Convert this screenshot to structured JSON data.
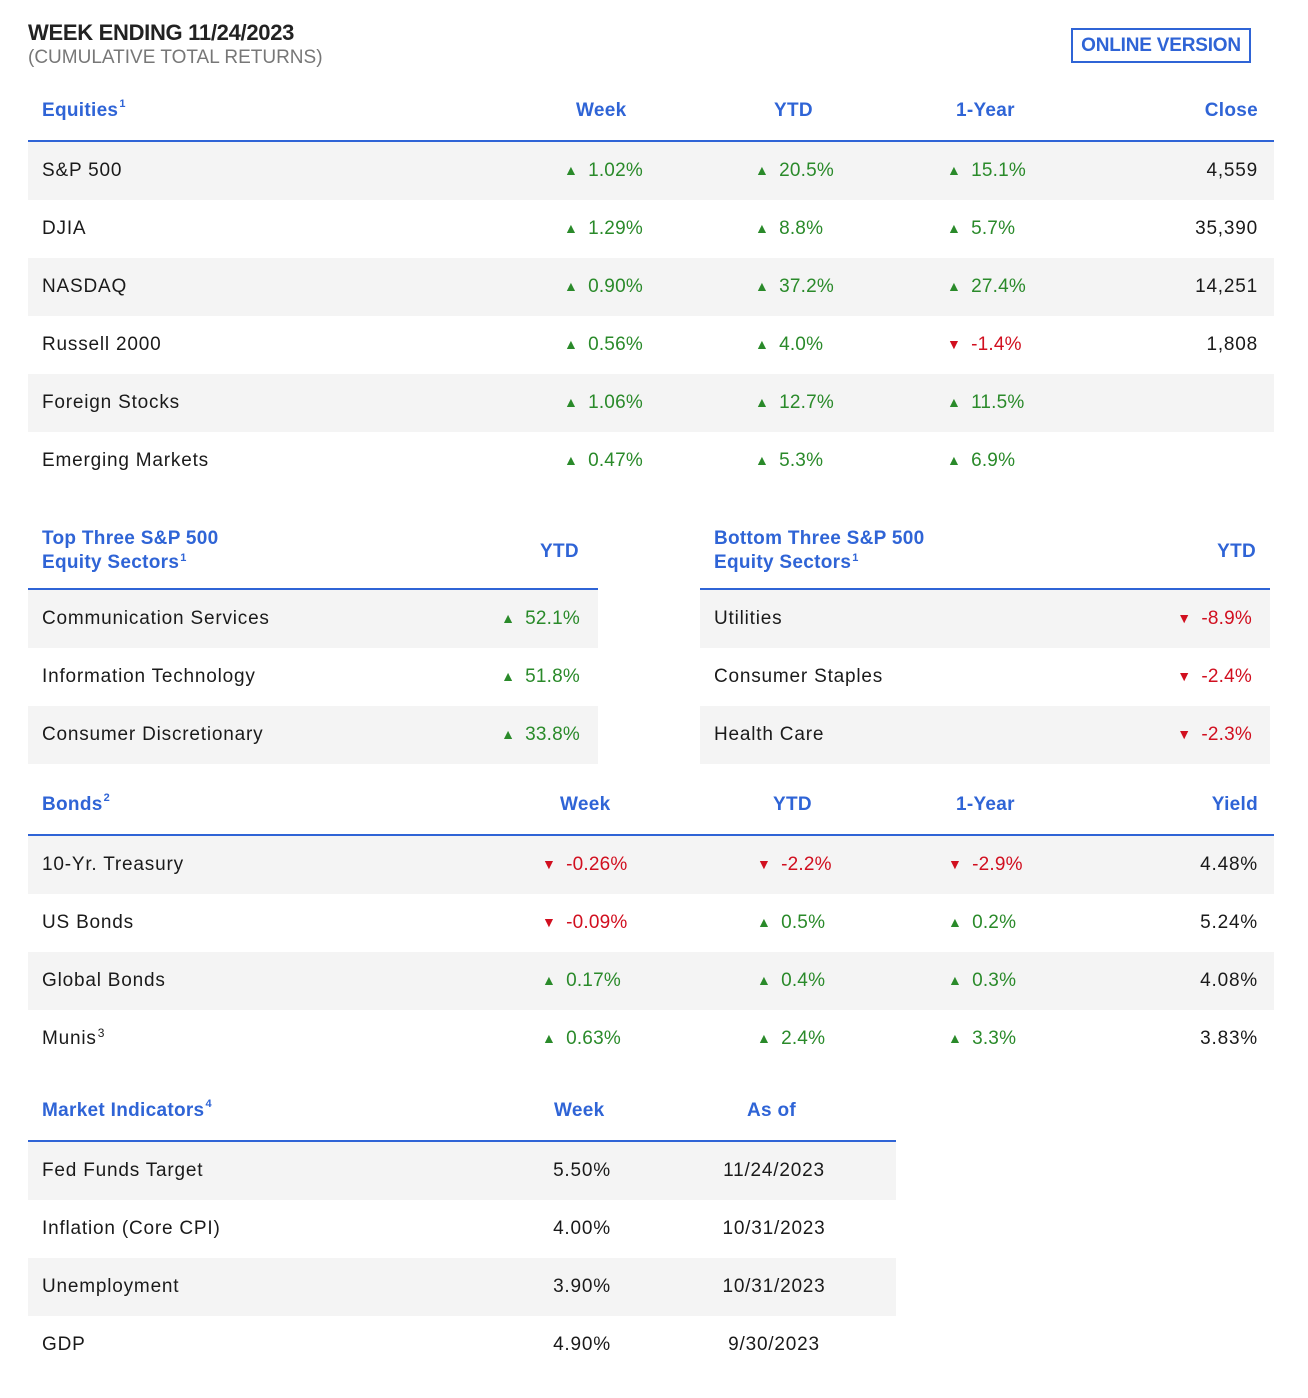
{
  "header": {
    "title": "WEEK ENDING 11/24/2023",
    "subtitle": "(CUMULATIVE TOTAL RETURNS)",
    "online_label": "ONLINE VERSION"
  },
  "equities": {
    "title": "Equities",
    "footnote": "1",
    "columns": [
      "Week",
      "YTD",
      "1-Year",
      "Close"
    ],
    "rows": [
      {
        "name": "S&P 500",
        "week": "1.02%",
        "ytd": "20.5%",
        "year": "15.1%",
        "close": "4,559",
        "week_dir": "up",
        "ytd_dir": "up",
        "year_dir": "up"
      },
      {
        "name": "DJIA",
        "week": "1.29%",
        "ytd": "8.8%",
        "year": "5.7%",
        "close": "35,390",
        "week_dir": "up",
        "ytd_dir": "up",
        "year_dir": "up"
      },
      {
        "name": "NASDAQ",
        "week": "0.90%",
        "ytd": "37.2%",
        "year": "27.4%",
        "close": "14,251",
        "week_dir": "up",
        "ytd_dir": "up",
        "year_dir": "up"
      },
      {
        "name": "Russell 2000",
        "week": "0.56%",
        "ytd": "4.0%",
        "year": "-1.4%",
        "close": "1,808",
        "week_dir": "up",
        "ytd_dir": "up",
        "year_dir": "down"
      },
      {
        "name": "Foreign Stocks",
        "week": "1.06%",
        "ytd": "12.7%",
        "year": "11.5%",
        "close": "",
        "week_dir": "up",
        "ytd_dir": "up",
        "year_dir": "up"
      },
      {
        "name": "Emerging Markets",
        "week": "0.47%",
        "ytd": "5.3%",
        "year": "6.9%",
        "close": "",
        "week_dir": "up",
        "ytd_dir": "up",
        "year_dir": "up"
      }
    ]
  },
  "top_sectors": {
    "title_line1": "Top Three S&P 500",
    "title_line2": "Equity Sectors",
    "footnote": "1",
    "column": "YTD",
    "rows": [
      {
        "name": "Communication Services",
        "ytd": "52.1%",
        "dir": "up"
      },
      {
        "name": "Information Technology",
        "ytd": "51.8%",
        "dir": "up"
      },
      {
        "name": "Consumer Discretionary",
        "ytd": "33.8%",
        "dir": "up"
      }
    ]
  },
  "bottom_sectors": {
    "title_line1": "Bottom Three S&P 500",
    "title_line2": "Equity Sectors",
    "footnote": "1",
    "column": "YTD",
    "rows": [
      {
        "name": "Utilities",
        "ytd": "-8.9%",
        "dir": "down"
      },
      {
        "name": "Consumer Staples",
        "ytd": "-2.4%",
        "dir": "down"
      },
      {
        "name": "Health Care",
        "ytd": "-2.3%",
        "dir": "down"
      }
    ]
  },
  "bonds": {
    "title": "Bonds",
    "footnote": "2",
    "columns": [
      "Week",
      "YTD",
      "1-Year",
      "Yield"
    ],
    "rows": [
      {
        "name": "10-Yr. Treasury",
        "sup": "",
        "week": "-0.26%",
        "ytd": "-2.2%",
        "year": "-2.9%",
        "yield": "4.48%",
        "week_dir": "down",
        "ytd_dir": "down",
        "year_dir": "down"
      },
      {
        "name": "US Bonds",
        "sup": "",
        "week": "-0.09%",
        "ytd": "0.5%",
        "year": "0.2%",
        "yield": "5.24%",
        "week_dir": "down",
        "ytd_dir": "up",
        "year_dir": "up"
      },
      {
        "name": "Global Bonds",
        "sup": "",
        "week": "0.17%",
        "ytd": "0.4%",
        "year": "0.3%",
        "yield": "4.08%",
        "week_dir": "up",
        "ytd_dir": "up",
        "year_dir": "up"
      },
      {
        "name": "Munis",
        "sup": "3",
        "week": "0.63%",
        "ytd": "2.4%",
        "year": "3.3%",
        "yield": "3.83%",
        "week_dir": "up",
        "ytd_dir": "up",
        "year_dir": "up"
      }
    ]
  },
  "indicators": {
    "title": "Market Indicators",
    "footnote": "4",
    "columns": [
      "Week",
      "As of"
    ],
    "rows": [
      {
        "name": "Fed Funds Target",
        "week": "5.50%",
        "asof": "11/24/2023"
      },
      {
        "name": "Inflation (Core CPI)",
        "week": "4.00%",
        "asof": "10/31/2023"
      },
      {
        "name": "Unemployment",
        "week": "3.90%",
        "asof": "10/31/2023"
      },
      {
        "name": "GDP",
        "week": "4.90%",
        "asof": "9/30/2023"
      }
    ]
  },
  "colors": {
    "accent": "#2f64d6",
    "positive": "#2a8a2a",
    "negative": "#d10f1f",
    "row_shade": "#f4f4f4"
  },
  "icons": {
    "up": "triangle-up-icon",
    "down": "triangle-down-icon"
  }
}
